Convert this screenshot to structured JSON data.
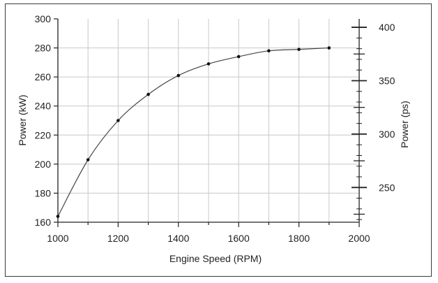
{
  "chart_data": {
    "type": "line",
    "title": "",
    "xlabel": "Engine Speed (RPM)",
    "ylabel": "Power (kW)",
    "y2label": "Power (ps)",
    "xlim": [
      1000,
      2000
    ],
    "ylim": [
      160,
      300
    ],
    "y2lim": [
      217.5,
      407.9
    ],
    "x_ticks": [
      1000,
      1200,
      1400,
      1600,
      1800,
      2000
    ],
    "y_ticks": [
      160,
      180,
      200,
      220,
      240,
      260,
      280,
      300
    ],
    "y2_ticks": [
      250,
      300,
      350,
      400
    ],
    "grid": true,
    "series": [
      {
        "x": [
          1000,
          1100,
          1200,
          1300,
          1400,
          1500,
          1600,
          1700,
          1800,
          1900
        ],
        "values": [
          164,
          203,
          230,
          248,
          261,
          269,
          274,
          278,
          279,
          280
        ]
      }
    ],
    "colors": {
      "line": "#444444",
      "grid": "#c8c8c8",
      "axis": "#222222"
    }
  }
}
